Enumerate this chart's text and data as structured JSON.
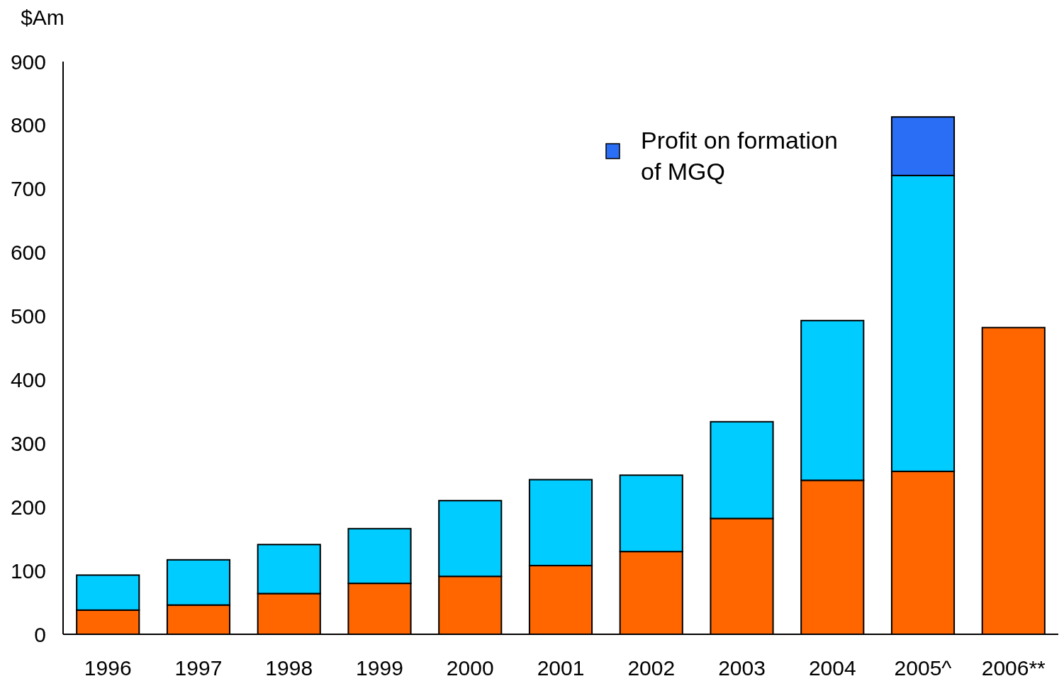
{
  "chart_data": {
    "type": "bar",
    "stacked": true,
    "ylabel": "$Am",
    "categories": [
      "1996",
      "1997",
      "1998",
      "1999",
      "2000",
      "2001",
      "2002",
      "2003",
      "2004",
      "2005^",
      "2006**"
    ],
    "series": [
      {
        "color": "#ff6600",
        "values": [
          38,
          46,
          64,
          80,
          91,
          108,
          130,
          182,
          242,
          256,
          482
        ]
      },
      {
        "color": "#00ccff",
        "values": [
          55,
          71,
          77,
          86,
          119,
          135,
          120,
          152,
          251,
          465,
          null
        ]
      },
      {
        "name": "Profit on formation of MGQ",
        "color": "#2a6ef5",
        "values": [
          null,
          null,
          null,
          null,
          null,
          null,
          null,
          null,
          null,
          92,
          null
        ]
      }
    ],
    "ylim": [
      0,
      900
    ],
    "yticks": [
      0,
      100,
      200,
      300,
      400,
      500,
      600,
      700,
      800,
      900
    ],
    "legend": "top"
  }
}
